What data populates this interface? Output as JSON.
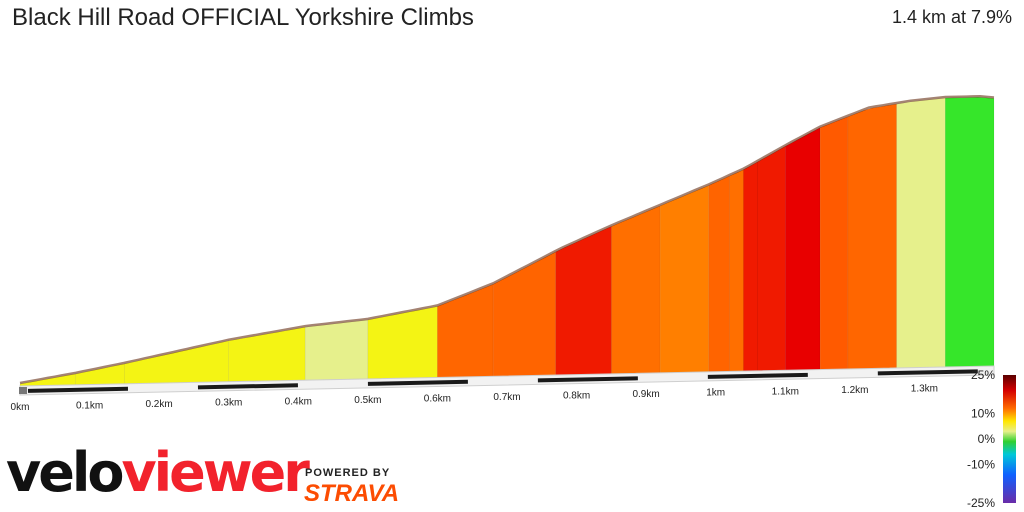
{
  "header": {
    "title": "Black Hill Road OFFICIAL Yorkshire Climbs",
    "summary": "1.4 km at 7.9%"
  },
  "branding": {
    "logo_part1": "velo",
    "logo_part2": "viewer",
    "powered_by": "POWERED BY",
    "strava": "STRAVA",
    "strava_color": "#fc4c02",
    "viewer_color": "#f2222c"
  },
  "chart_data": {
    "type": "area",
    "title": "Black Hill Road OFFICIAL Yorkshire Climbs",
    "x_unit": "km",
    "xlim": [
      0,
      1.4
    ],
    "x_ticks": [
      {
        "value": 0,
        "label": "0km"
      },
      {
        "value": 0.1,
        "label": "0.1km"
      },
      {
        "value": 0.2,
        "label": "0.2km"
      },
      {
        "value": 0.3,
        "label": "0.3km"
      },
      {
        "value": 0.4,
        "label": "0.4km"
      },
      {
        "value": 0.5,
        "label": "0.5km"
      },
      {
        "value": 0.6,
        "label": "0.6km"
      },
      {
        "value": 0.7,
        "label": "0.7km"
      },
      {
        "value": 0.8,
        "label": "0.8km"
      },
      {
        "value": 0.9,
        "label": "0.9km"
      },
      {
        "value": 1.0,
        "label": "1km"
      },
      {
        "value": 1.1,
        "label": "1.1km"
      },
      {
        "value": 1.2,
        "label": "1.2km"
      },
      {
        "value": 1.3,
        "label": "1.3km"
      }
    ],
    "elevation_profile": {
      "x": [
        0,
        0.08,
        0.15,
        0.3,
        0.41,
        0.5,
        0.6,
        0.68,
        0.78,
        0.85,
        0.92,
        0.99,
        1.04,
        1.1,
        1.15,
        1.22,
        1.28,
        1.33,
        1.38,
        1.4
      ],
      "y": [
        0,
        6,
        12,
        26,
        34,
        38,
        46,
        60,
        83,
        97,
        110,
        123,
        133,
        148,
        160,
        172,
        176,
        178,
        178,
        177
      ]
    },
    "segments": [
      {
        "x0": 0.0,
        "x1": 0.08,
        "gradient": 7
      },
      {
        "x0": 0.08,
        "x1": 0.15,
        "gradient": 8
      },
      {
        "x0": 0.15,
        "x1": 0.3,
        "gradient": 9
      },
      {
        "x0": 0.3,
        "x1": 0.41,
        "gradient": 8
      },
      {
        "x0": 0.41,
        "x1": 0.5,
        "gradient": 5
      },
      {
        "x0": 0.5,
        "x1": 0.6,
        "gradient": 7
      },
      {
        "x0": 0.6,
        "x1": 0.68,
        "gradient": 11
      },
      {
        "x0": 0.68,
        "x1": 0.77,
        "gradient": 16
      },
      {
        "x0": 0.77,
        "x1": 0.85,
        "gradient": 20
      },
      {
        "x0": 0.85,
        "x1": 0.92,
        "gradient": 17
      },
      {
        "x0": 0.92,
        "x1": 0.99,
        "gradient": 15
      },
      {
        "x0": 0.99,
        "x1": 1.02,
        "gradient": 16
      },
      {
        "x0": 1.02,
        "x1": 1.04,
        "gradient": 17
      },
      {
        "x0": 1.04,
        "x1": 1.06,
        "gradient": 19
      },
      {
        "x0": 1.06,
        "x1": 1.1,
        "gradient": 20
      },
      {
        "x0": 1.1,
        "x1": 1.15,
        "gradient": 21
      },
      {
        "x0": 1.15,
        "x1": 1.19,
        "gradient": 18
      },
      {
        "x0": 1.19,
        "x1": 1.26,
        "gradient": 10
      },
      {
        "x0": 1.26,
        "x1": 1.33,
        "gradient": 5
      },
      {
        "x0": 1.33,
        "x1": 1.4,
        "gradient": 1
      }
    ],
    "gradient_scale": {
      "labels": [
        "25%",
        "10%",
        "0%",
        "-10%",
        "-25%"
      ],
      "values": [
        25,
        10,
        0,
        -10,
        -25
      ],
      "colors": [
        "#7a0000",
        "#c00000",
        "#ff1a00",
        "#ff7a00",
        "#ffd700",
        "#f4f400",
        "#e5f08a",
        "#37e02c",
        "#00c8c8",
        "#0060ff",
        "#6a2ca8"
      ]
    }
  }
}
